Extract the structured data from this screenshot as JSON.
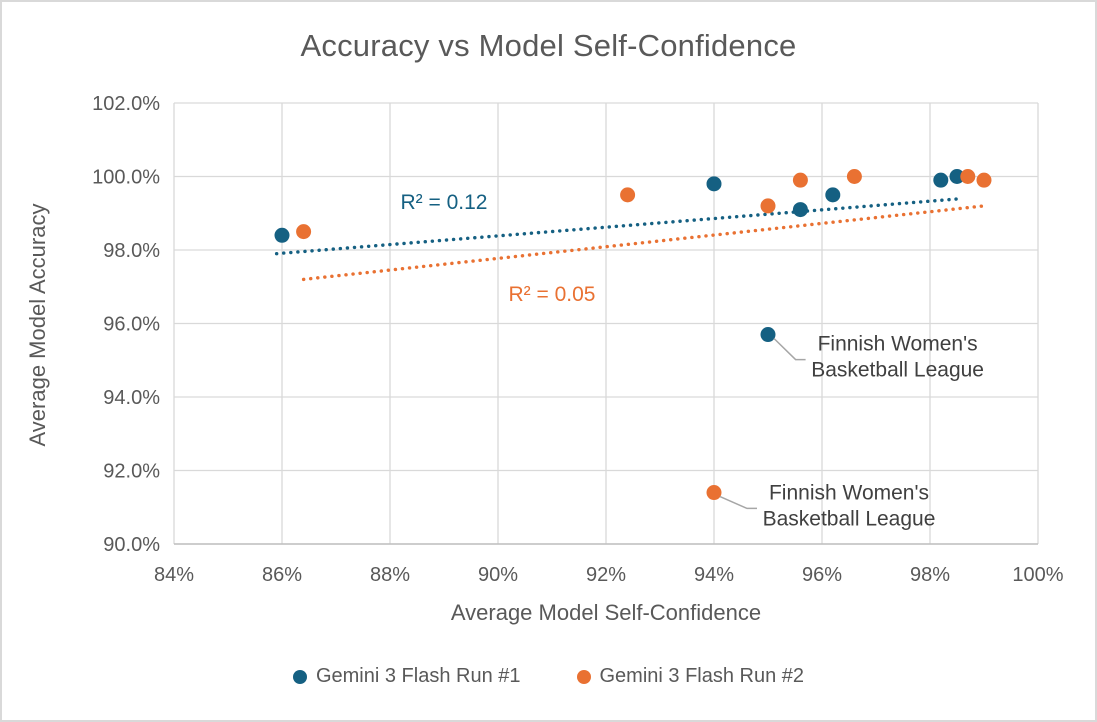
{
  "window": {
    "background": "#FFFFFF",
    "border_color": "#D9D9D9"
  },
  "colors": {
    "series1": "#156082",
    "series2": "#E97132",
    "gridline": "#D9D9D9",
    "axis_line": "#BFBFBF",
    "axis_text": "#595959",
    "title_text": "#595959",
    "annotation_text": "#404040",
    "leader_line": "#A6A6A6"
  },
  "chart_data": {
    "type": "scatter",
    "title": "Accuracy vs Model Self-Confidence",
    "xlabel": "Average Model Self-Confidence",
    "ylabel": "Average Model Accuracy",
    "xlim": [
      84,
      100
    ],
    "ylim": [
      90,
      102
    ],
    "x_tick_values": [
      84,
      86,
      88,
      90,
      92,
      94,
      96,
      98,
      100
    ],
    "x_tick_labels": [
      "84%",
      "86%",
      "88%",
      "90%",
      "92%",
      "94%",
      "96%",
      "98%",
      "100%"
    ],
    "y_tick_values": [
      90,
      92,
      94,
      96,
      98,
      100,
      102
    ],
    "y_tick_labels": [
      "90.0%",
      "92.0%",
      "94.0%",
      "96.0%",
      "98.0%",
      "100.0%",
      "102.0%"
    ],
    "grid": true,
    "legend_position": "bottom",
    "series": [
      {
        "name": "Gemini 3 Flash Run #1",
        "color": "#156082",
        "points": [
          [
            86.0,
            98.4
          ],
          [
            94.0,
            99.8
          ],
          [
            95.0,
            95.7
          ],
          [
            95.6,
            99.1
          ],
          [
            96.2,
            99.5
          ],
          [
            98.2,
            99.9
          ],
          [
            98.5,
            100.0
          ]
        ],
        "trendline": {
          "x1": 85.9,
          "y1": 97.9,
          "x2": 98.6,
          "y2": 99.4,
          "r2_label": "R² = 0.12",
          "r2_label_pos": [
            89.0,
            99.3
          ]
        }
      },
      {
        "name": "Gemini 3 Flash Run #2",
        "color": "#E97132",
        "points": [
          [
            86.4,
            98.5
          ],
          [
            92.4,
            99.5
          ],
          [
            94.0,
            91.4
          ],
          [
            95.0,
            99.2
          ],
          [
            95.6,
            99.9
          ],
          [
            96.6,
            100.0
          ],
          [
            98.7,
            100.0
          ],
          [
            99.0,
            99.9
          ]
        ],
        "trendline": {
          "x1": 86.4,
          "y1": 97.2,
          "x2": 99.0,
          "y2": 99.2,
          "r2_label": "R² = 0.05",
          "r2_label_pos": [
            91.0,
            96.8
          ]
        }
      }
    ],
    "annotations": [
      {
        "series": 0,
        "point": [
          95.0,
          95.7
        ],
        "lines": [
          "Finnish Women's",
          "Basketball League"
        ],
        "label_center": [
          97.4,
          95.1
        ]
      },
      {
        "series": 1,
        "point": [
          94.0,
          91.4
        ],
        "lines": [
          "Finnish Women's",
          "Basketball League"
        ],
        "label_center": [
          96.5,
          91.05
        ]
      }
    ]
  }
}
